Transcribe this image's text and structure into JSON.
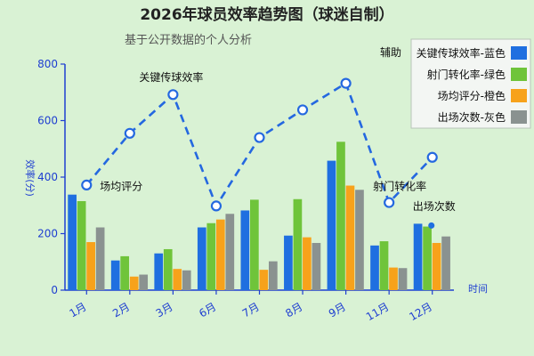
{
  "chart_data": {
    "type": "bar",
    "title": "2026年球员效率趋势图（球迷自制）",
    "subtitle": "基于公开数据的个人分析",
    "xlabel": "时间",
    "ylabel": "效率(分)",
    "ylim": [
      0,
      800
    ],
    "yticks": [
      0,
      200,
      400,
      600,
      800
    ],
    "categories": [
      "1月",
      "2月",
      "3月",
      "6月",
      "7月",
      "8月",
      "9月",
      "11月",
      "12月"
    ],
    "series": [
      {
        "name": "关键传球效率-蓝色",
        "color": "#1f6fe0",
        "values": [
          338,
          105,
          130,
          222,
          282,
          193,
          458,
          158,
          235
        ]
      },
      {
        "name": "射门转化率-绿色",
        "color": "#6fc43a",
        "values": [
          315,
          120,
          145,
          237,
          320,
          322,
          525,
          173,
          225
        ]
      },
      {
        "name": "场均评分-橙色",
        "color": "#f7a21b",
        "values": [
          170,
          48,
          75,
          250,
          72,
          187,
          370,
          80,
          167
        ]
      },
      {
        "name": "出场次数-灰色",
        "color": "#8a9290",
        "values": [
          222,
          55,
          70,
          270,
          102,
          167,
          355,
          78,
          190
        ]
      }
    ],
    "line": {
      "name": "辅助",
      "color": "#2468e0",
      "values": [
        372,
        555,
        692,
        298,
        540,
        638,
        732,
        310,
        470
      ]
    },
    "annotations": [
      {
        "text": "关键传球效率",
        "category": "3月",
        "value": 740
      },
      {
        "text": "场均评分",
        "category": "1月",
        "value": 355
      },
      {
        "text": "射门转化率",
        "category": "11月",
        "value": 355
      },
      {
        "text": "出场次数",
        "category": "12月",
        "value": 283
      }
    ],
    "legend_position": "top-right",
    "grid": false
  }
}
